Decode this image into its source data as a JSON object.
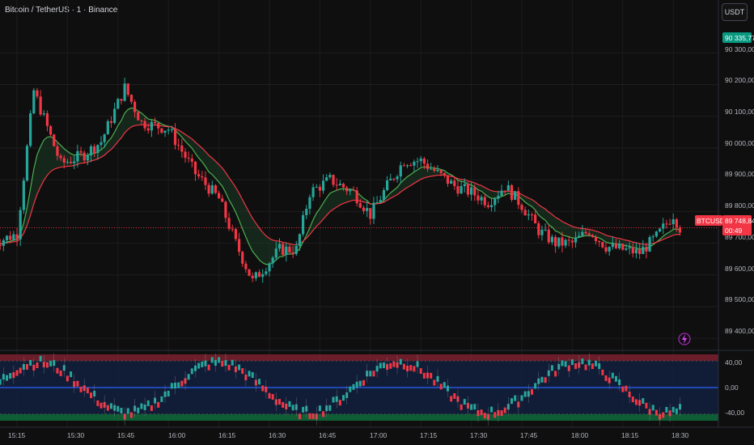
{
  "header": {
    "symbol_title": "Bitcoin / TetherUS · 1 · Binance",
    "currency_button": "USDT"
  },
  "price_axis": {
    "labels": [
      "90 300,00",
      "90 200,00",
      "90 100,00",
      "90 000,00",
      "89 900,00",
      "89 800,00",
      "89 700,00",
      "89 600,00",
      "89 500,00",
      "89 400,00"
    ],
    "high_tag": "90 335,77",
    "last_symbol": "BTCUSDT",
    "last_price": "89 748,84",
    "countdown": "00:49"
  },
  "time_axis": {
    "labels": [
      "15:15",
      "15:30",
      "15:45",
      "16:00",
      "16:15",
      "16:30",
      "16:45",
      "17:00",
      "17:15",
      "17:30",
      "17:45",
      "18:00",
      "18:15",
      "18:30"
    ]
  },
  "oscillator_axis": {
    "labels": [
      "40,00",
      "0,00",
      "-40,00"
    ]
  },
  "icons": {
    "alert": "lightning-icon"
  },
  "colors": {
    "up": "#26a69a",
    "down": "#f23645",
    "ema_fast": "#4caf50",
    "ema_slow": "#f23645",
    "price_tag": "#f23645",
    "high_tag": "#089981"
  },
  "chart_data": {
    "type": "candlestick",
    "x": [
      "15:15",
      "15:30",
      "15:45",
      "16:00",
      "16:15",
      "16:30",
      "16:45",
      "17:00",
      "17:15",
      "17:30",
      "17:45",
      "18:00",
      "18:15",
      "18:30"
    ],
    "price_anchors": [
      {
        "time": "15:08",
        "price": 89700
      },
      {
        "time": "15:15",
        "price": 89730
      },
      {
        "time": "15:20",
        "price": 90180
      },
      {
        "time": "15:28",
        "price": 89950
      },
      {
        "time": "15:35",
        "price": 89980
      },
      {
        "time": "15:40",
        "price": 90020
      },
      {
        "time": "15:47",
        "price": 90190
      },
      {
        "time": "15:52",
        "price": 90080
      },
      {
        "time": "16:00",
        "price": 90060
      },
      {
        "time": "16:08",
        "price": 89920
      },
      {
        "time": "16:15",
        "price": 89840
      },
      {
        "time": "16:20",
        "price": 89700
      },
      {
        "time": "16:25",
        "price": 89580
      },
      {
        "time": "16:33",
        "price": 89680
      },
      {
        "time": "16:38",
        "price": 89680
      },
      {
        "time": "16:42",
        "price": 89860
      },
      {
        "time": "16:48",
        "price": 89900
      },
      {
        "time": "16:55",
        "price": 89860
      },
      {
        "time": "17:00",
        "price": 89790
      },
      {
        "time": "17:05",
        "price": 89880
      },
      {
        "time": "17:10",
        "price": 89960
      },
      {
        "time": "17:15",
        "price": 89960
      },
      {
        "time": "17:20",
        "price": 89920
      },
      {
        "time": "17:25",
        "price": 89880
      },
      {
        "time": "17:30",
        "price": 89860
      },
      {
        "time": "17:35",
        "price": 89830
      },
      {
        "time": "17:40",
        "price": 89880
      },
      {
        "time": "17:45",
        "price": 89820
      },
      {
        "time": "17:50",
        "price": 89740
      },
      {
        "time": "17:55",
        "price": 89700
      },
      {
        "time": "18:00",
        "price": 89700
      },
      {
        "time": "18:05",
        "price": 89740
      },
      {
        "time": "18:10",
        "price": 89690
      },
      {
        "time": "18:15",
        "price": 89680
      },
      {
        "time": "18:20",
        "price": 89670
      },
      {
        "time": "18:25",
        "price": 89720
      },
      {
        "time": "18:30",
        "price": 89790
      },
      {
        "time": "18:32",
        "price": 89748.84
      }
    ],
    "ylim": [
      89370,
      90390
    ],
    "oscillator_ylim": [
      -50,
      50
    ],
    "oscillator_bands": [
      40,
      0,
      -40
    ]
  }
}
